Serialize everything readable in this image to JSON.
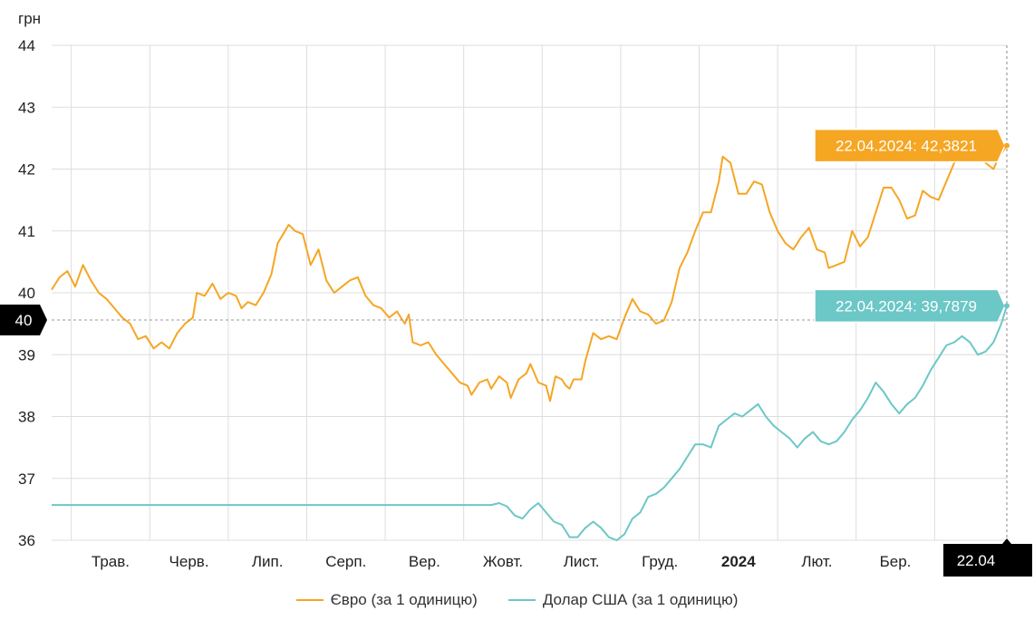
{
  "chart_data": {
    "type": "line",
    "y_unit": "грн",
    "ylim": [
      36,
      44
    ],
    "y_ticks": [
      "36",
      "37",
      "38",
      "39",
      "40",
      "41",
      "42",
      "43",
      "44"
    ],
    "x_range": [
      0,
      12.17
    ],
    "x_ticks": [
      {
        "label": "Трав.",
        "x": 0.75,
        "bold": false
      },
      {
        "label": "Черв.",
        "x": 1.75,
        "bold": false
      },
      {
        "label": "Лип.",
        "x": 2.75,
        "bold": false
      },
      {
        "label": "Серп.",
        "x": 3.75,
        "bold": false
      },
      {
        "label": "Вер.",
        "x": 4.75,
        "bold": false
      },
      {
        "label": "Жовт.",
        "x": 5.75,
        "bold": false
      },
      {
        "label": "Лист.",
        "x": 6.75,
        "bold": false
      },
      {
        "label": "Груд.",
        "x": 7.75,
        "bold": false
      },
      {
        "label": "2024",
        "x": 8.75,
        "bold": true
      },
      {
        "label": "Лют.",
        "x": 9.75,
        "bold": false
      },
      {
        "label": "Бер.",
        "x": 10.75,
        "bold": false
      }
    ],
    "month_gridlines": [
      0.25,
      1.25,
      2.25,
      3.25,
      4.25,
      5.25,
      6.25,
      7.25,
      8.25,
      9.25,
      10.25,
      11.25
    ],
    "crosshair": {
      "y_label": "40",
      "y_value": 39.56,
      "x_label": "22.04",
      "x_value": 12.17
    },
    "series": [
      {
        "name": "Євро (за 1 одиницю)",
        "color": "#f5a623",
        "tooltip": "22.04.2024: 42,3821",
        "points": [
          [
            0,
            40.05
          ],
          [
            0.1,
            40.25
          ],
          [
            0.2,
            40.35
          ],
          [
            0.3,
            40.1
          ],
          [
            0.4,
            40.45
          ],
          [
            0.5,
            40.2
          ],
          [
            0.6,
            40.0
          ],
          [
            0.7,
            39.9
          ],
          [
            0.8,
            39.75
          ],
          [
            0.9,
            39.6
          ],
          [
            1.0,
            39.5
          ],
          [
            1.1,
            39.25
          ],
          [
            1.2,
            39.3
          ],
          [
            1.3,
            39.1
          ],
          [
            1.4,
            39.2
          ],
          [
            1.5,
            39.1
          ],
          [
            1.6,
            39.35
          ],
          [
            1.7,
            39.5
          ],
          [
            1.8,
            39.6
          ],
          [
            1.85,
            40.0
          ],
          [
            1.95,
            39.95
          ],
          [
            2.05,
            40.15
          ],
          [
            2.15,
            39.9
          ],
          [
            2.25,
            40.0
          ],
          [
            2.35,
            39.95
          ],
          [
            2.42,
            39.75
          ],
          [
            2.5,
            39.85
          ],
          [
            2.6,
            39.8
          ],
          [
            2.7,
            40.0
          ],
          [
            2.8,
            40.3
          ],
          [
            2.88,
            40.8
          ],
          [
            2.95,
            40.95
          ],
          [
            3.02,
            41.1
          ],
          [
            3.1,
            41.0
          ],
          [
            3.2,
            40.95
          ],
          [
            3.3,
            40.45
          ],
          [
            3.4,
            40.7
          ],
          [
            3.5,
            40.2
          ],
          [
            3.6,
            40.0
          ],
          [
            3.7,
            40.1
          ],
          [
            3.8,
            40.2
          ],
          [
            3.9,
            40.25
          ],
          [
            4.0,
            39.95
          ],
          [
            4.1,
            39.8
          ],
          [
            4.2,
            39.75
          ],
          [
            4.3,
            39.6
          ],
          [
            4.4,
            39.7
          ],
          [
            4.5,
            39.5
          ],
          [
            4.55,
            39.65
          ],
          [
            4.6,
            39.2
          ],
          [
            4.7,
            39.15
          ],
          [
            4.8,
            39.2
          ],
          [
            4.9,
            39.0
          ],
          [
            5.0,
            38.85
          ],
          [
            5.1,
            38.7
          ],
          [
            5.2,
            38.55
          ],
          [
            5.3,
            38.5
          ],
          [
            5.35,
            38.35
          ],
          [
            5.45,
            38.55
          ],
          [
            5.55,
            38.6
          ],
          [
            5.6,
            38.45
          ],
          [
            5.7,
            38.65
          ],
          [
            5.8,
            38.55
          ],
          [
            5.85,
            38.3
          ],
          [
            5.95,
            38.6
          ],
          [
            6.05,
            38.7
          ],
          [
            6.1,
            38.85
          ],
          [
            6.2,
            38.55
          ],
          [
            6.3,
            38.5
          ],
          [
            6.35,
            38.25
          ],
          [
            6.42,
            38.65
          ],
          [
            6.5,
            38.6
          ],
          [
            6.55,
            38.5
          ],
          [
            6.6,
            38.45
          ],
          [
            6.65,
            38.6
          ],
          [
            6.75,
            38.6
          ],
          [
            6.8,
            38.9
          ],
          [
            6.9,
            39.35
          ],
          [
            7.0,
            39.25
          ],
          [
            7.1,
            39.3
          ],
          [
            7.2,
            39.25
          ],
          [
            7.3,
            39.6
          ],
          [
            7.4,
            39.9
          ],
          [
            7.5,
            39.7
          ],
          [
            7.6,
            39.65
          ],
          [
            7.7,
            39.5
          ],
          [
            7.8,
            39.55
          ],
          [
            7.9,
            39.85
          ],
          [
            8.0,
            40.4
          ],
          [
            8.1,
            40.65
          ],
          [
            8.2,
            41.0
          ],
          [
            8.3,
            41.3
          ],
          [
            8.4,
            41.3
          ],
          [
            8.5,
            41.8
          ],
          [
            8.55,
            42.2
          ],
          [
            8.65,
            42.1
          ],
          [
            8.75,
            41.6
          ],
          [
            8.85,
            41.6
          ],
          [
            8.95,
            41.8
          ],
          [
            9.05,
            41.75
          ],
          [
            9.15,
            41.3
          ],
          [
            9.25,
            41.0
          ],
          [
            9.35,
            40.8
          ],
          [
            9.45,
            40.7
          ],
          [
            9.55,
            40.9
          ],
          [
            9.65,
            41.05
          ],
          [
            9.75,
            40.7
          ],
          [
            9.85,
            40.65
          ],
          [
            9.9,
            40.4
          ],
          [
            10.0,
            40.45
          ],
          [
            10.1,
            40.5
          ],
          [
            10.2,
            41.0
          ],
          [
            10.3,
            40.75
          ],
          [
            10.4,
            40.9
          ],
          [
            10.5,
            41.3
          ],
          [
            10.6,
            41.7
          ],
          [
            10.7,
            41.7
          ],
          [
            10.8,
            41.5
          ],
          [
            10.9,
            41.2
          ],
          [
            11.0,
            41.25
          ],
          [
            11.1,
            41.65
          ],
          [
            11.2,
            41.55
          ],
          [
            11.3,
            41.5
          ],
          [
            11.4,
            41.8
          ],
          [
            11.5,
            42.1
          ],
          [
            11.6,
            42.35
          ],
          [
            11.7,
            42.45
          ],
          [
            11.8,
            42.3
          ],
          [
            11.9,
            42.1
          ],
          [
            12.0,
            42.0
          ],
          [
            12.05,
            42.15
          ],
          [
            12.1,
            42.25
          ],
          [
            12.17,
            42.38
          ]
        ]
      },
      {
        "name": "Долар США (за 1 одиницю)",
        "color": "#6cc7c7",
        "tooltip": "22.04.2024: 39,7879",
        "points": [
          [
            0,
            36.57
          ],
          [
            5.6,
            36.57
          ],
          [
            5.7,
            36.6
          ],
          [
            5.8,
            36.55
          ],
          [
            5.9,
            36.4
          ],
          [
            6.0,
            36.35
          ],
          [
            6.1,
            36.5
          ],
          [
            6.2,
            36.6
          ],
          [
            6.3,
            36.45
          ],
          [
            6.4,
            36.3
          ],
          [
            6.5,
            36.25
          ],
          [
            6.6,
            36.05
          ],
          [
            6.7,
            36.05
          ],
          [
            6.8,
            36.2
          ],
          [
            6.9,
            36.3
          ],
          [
            7.0,
            36.2
          ],
          [
            7.1,
            36.05
          ],
          [
            7.2,
            36.0
          ],
          [
            7.3,
            36.1
          ],
          [
            7.4,
            36.35
          ],
          [
            7.5,
            36.45
          ],
          [
            7.6,
            36.7
          ],
          [
            7.7,
            36.75
          ],
          [
            7.8,
            36.85
          ],
          [
            7.9,
            37.0
          ],
          [
            8.0,
            37.15
          ],
          [
            8.1,
            37.35
          ],
          [
            8.2,
            37.55
          ],
          [
            8.3,
            37.55
          ],
          [
            8.4,
            37.5
          ],
          [
            8.5,
            37.85
          ],
          [
            8.6,
            37.95
          ],
          [
            8.7,
            38.05
          ],
          [
            8.8,
            38.0
          ],
          [
            8.9,
            38.1
          ],
          [
            9.0,
            38.2
          ],
          [
            9.1,
            38.0
          ],
          [
            9.2,
            37.85
          ],
          [
            9.3,
            37.75
          ],
          [
            9.4,
            37.65
          ],
          [
            9.5,
            37.5
          ],
          [
            9.6,
            37.65
          ],
          [
            9.7,
            37.75
          ],
          [
            9.8,
            37.6
          ],
          [
            9.9,
            37.55
          ],
          [
            10.0,
            37.6
          ],
          [
            10.1,
            37.75
          ],
          [
            10.2,
            37.95
          ],
          [
            10.3,
            38.1
          ],
          [
            10.4,
            38.3
          ],
          [
            10.5,
            38.55
          ],
          [
            10.6,
            38.4
          ],
          [
            10.7,
            38.2
          ],
          [
            10.8,
            38.05
          ],
          [
            10.9,
            38.2
          ],
          [
            11.0,
            38.3
          ],
          [
            11.1,
            38.5
          ],
          [
            11.2,
            38.75
          ],
          [
            11.3,
            38.95
          ],
          [
            11.4,
            39.15
          ],
          [
            11.5,
            39.2
          ],
          [
            11.6,
            39.3
          ],
          [
            11.7,
            39.2
          ],
          [
            11.8,
            39.0
          ],
          [
            11.9,
            39.05
          ],
          [
            12.0,
            39.2
          ],
          [
            12.05,
            39.35
          ],
          [
            12.1,
            39.5
          ],
          [
            12.17,
            39.79
          ]
        ]
      }
    ]
  }
}
